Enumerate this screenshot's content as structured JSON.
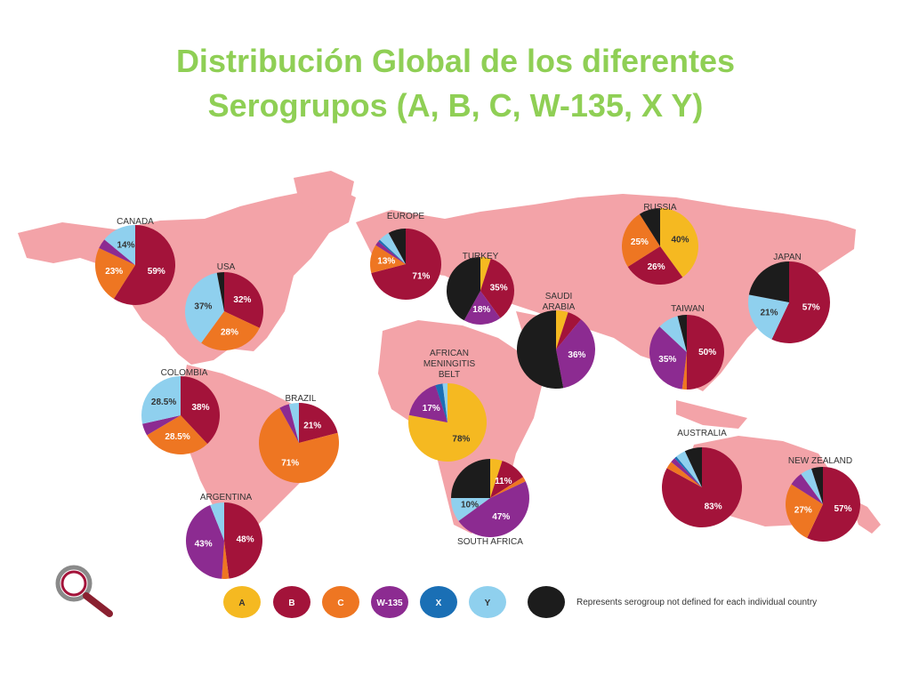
{
  "title": {
    "line1": "Distribución Global de los diferentes",
    "line2": "Serogrupos  (A, B, C, W-135, X Y)"
  },
  "colors": {
    "A": "#f5b921",
    "B": "#a3133a",
    "C": "#ee7622",
    "W-135": "#8c2b91",
    "X": "#1a6fb5",
    "Y": "#8fd0ee",
    "undefined": "#1c1c1c",
    "land": "#f3a3a8",
    "title": "#8fcf55"
  },
  "legend": {
    "items": [
      {
        "key": "A",
        "label": "A"
      },
      {
        "key": "B",
        "label": "B"
      },
      {
        "key": "C",
        "label": "C"
      },
      {
        "key": "W-135",
        "label": "W-135"
      },
      {
        "key": "X",
        "label": "X"
      },
      {
        "key": "Y",
        "label": "Y"
      }
    ],
    "undefined_note": "Represents serogroup not defined for each individual country"
  },
  "regions": [
    {
      "name": "CANADA",
      "slices": [
        {
          "g": "B",
          "v": 59,
          "label": "59%"
        },
        {
          "g": "C",
          "v": 23,
          "label": "23%"
        },
        {
          "g": "W-135",
          "v": 4
        },
        {
          "g": "Y",
          "v": 14,
          "label": "14%"
        }
      ]
    },
    {
      "name": "USA",
      "slices": [
        {
          "g": "B",
          "v": 32,
          "label": "32%"
        },
        {
          "g": "C",
          "v": 28,
          "label": "28%"
        },
        {
          "g": "Y",
          "v": 37,
          "label": "37%"
        },
        {
          "g": "undefined",
          "v": 3
        }
      ]
    },
    {
      "name": "EUROPE",
      "slices": [
        {
          "g": "B",
          "v": 71,
          "label": "71%"
        },
        {
          "g": "C",
          "v": 13,
          "label": "13%"
        },
        {
          "g": "W-135",
          "v": 2
        },
        {
          "g": "X",
          "v": 1
        },
        {
          "g": "Y",
          "v": 5
        },
        {
          "g": "undefined",
          "v": 8
        }
      ]
    },
    {
      "name": "TURKEY",
      "slices": [
        {
          "g": "A",
          "v": 5
        },
        {
          "g": "B",
          "v": 35,
          "label": "35%"
        },
        {
          "g": "W-135",
          "v": 18,
          "label": "18%"
        },
        {
          "g": "undefined",
          "v": 42
        }
      ]
    },
    {
      "name": "RUSSIA",
      "slices": [
        {
          "g": "A",
          "v": 40,
          "label": "40%"
        },
        {
          "g": "B",
          "v": 26,
          "label": "26%"
        },
        {
          "g": "C",
          "v": 25,
          "label": "25%"
        },
        {
          "g": "undefined",
          "v": 9
        }
      ]
    },
    {
      "name": "JAPAN",
      "slices": [
        {
          "g": "B",
          "v": 57,
          "label": "57%"
        },
        {
          "g": "Y",
          "v": 21,
          "label": "21%"
        },
        {
          "g": "undefined",
          "v": 22
        }
      ]
    },
    {
      "name": "SAUDI ARABIA",
      "slices": [
        {
          "g": "A",
          "v": 5
        },
        {
          "g": "B",
          "v": 6
        },
        {
          "g": "W-135",
          "v": 36,
          "label": "36%"
        },
        {
          "g": "undefined",
          "v": 53
        }
      ]
    },
    {
      "name": "TAIWAN",
      "slices": [
        {
          "g": "B",
          "v": 50,
          "label": "50%"
        },
        {
          "g": "C",
          "v": 2
        },
        {
          "g": "W-135",
          "v": 35,
          "label": "35%"
        },
        {
          "g": "Y",
          "v": 9
        },
        {
          "g": "undefined",
          "v": 4
        }
      ]
    },
    {
      "name": "COLOMBIA",
      "slices": [
        {
          "g": "B",
          "v": 38,
          "label": "38%"
        },
        {
          "g": "C",
          "v": 28.5,
          "label": "28.5%"
        },
        {
          "g": "W-135",
          "v": 5
        },
        {
          "g": "Y",
          "v": 28.5,
          "label": "28.5%"
        }
      ]
    },
    {
      "name": "BRAZIL",
      "slices": [
        {
          "g": "B",
          "v": 21,
          "label": "21%"
        },
        {
          "g": "C",
          "v": 71,
          "label": "71%"
        },
        {
          "g": "W-135",
          "v": 4
        },
        {
          "g": "Y",
          "v": 4
        }
      ]
    },
    {
      "name": "AFRICAN MENINGITIS BELT",
      "slices": [
        {
          "g": "A",
          "v": 78,
          "label": "78%"
        },
        {
          "g": "W-135",
          "v": 17,
          "label": "17%"
        },
        {
          "g": "X",
          "v": 3
        },
        {
          "g": "Y",
          "v": 2
        }
      ]
    },
    {
      "name": "SOUTH AFRICA",
      "slices": [
        {
          "g": "A",
          "v": 5
        },
        {
          "g": "B",
          "v": 11,
          "label": "11%"
        },
        {
          "g": "C",
          "v": 2
        },
        {
          "g": "W-135",
          "v": 47,
          "label": "47%"
        },
        {
          "g": "Y",
          "v": 10,
          "label": "10%"
        },
        {
          "g": "undefined",
          "v": 25
        }
      ]
    },
    {
      "name": "AUSTRALIA",
      "slices": [
        {
          "g": "B",
          "v": 83,
          "label": "83%"
        },
        {
          "g": "C",
          "v": 3
        },
        {
          "g": "W-135",
          "v": 2
        },
        {
          "g": "X",
          "v": 1
        },
        {
          "g": "Y",
          "v": 4
        },
        {
          "g": "undefined",
          "v": 7
        }
      ]
    },
    {
      "name": "NEW ZEALAND",
      "slices": [
        {
          "g": "B",
          "v": 57,
          "label": "57%"
        },
        {
          "g": "C",
          "v": 27,
          "label": "27%"
        },
        {
          "g": "W-135",
          "v": 6
        },
        {
          "g": "Y",
          "v": 5
        },
        {
          "g": "undefined",
          "v": 5
        }
      ]
    },
    {
      "name": "ARGENTINA",
      "slices": [
        {
          "g": "B",
          "v": 48,
          "label": "48%"
        },
        {
          "g": "C",
          "v": 3
        },
        {
          "g": "W-135",
          "v": 43,
          "label": "43%"
        },
        {
          "g": "Y",
          "v": 6
        }
      ]
    }
  ]
}
